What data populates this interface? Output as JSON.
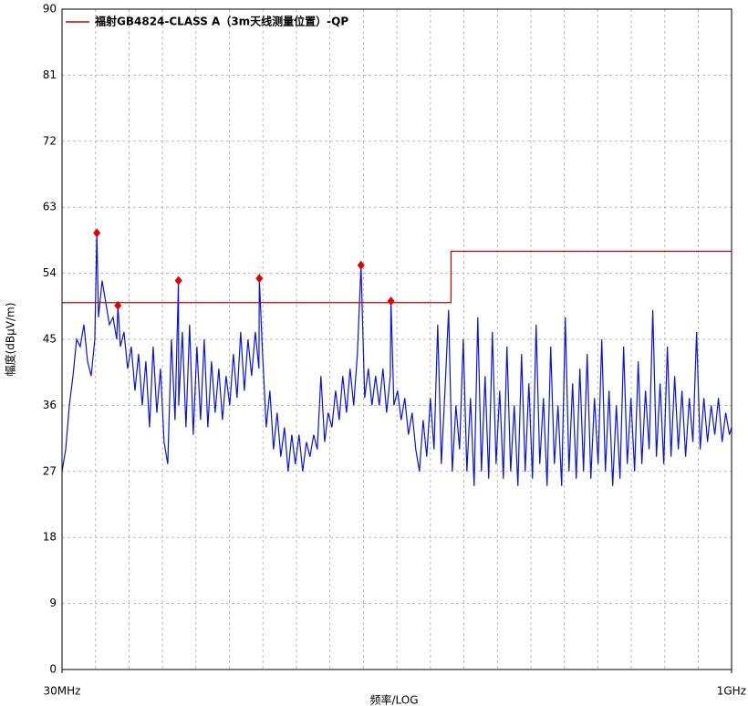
{
  "chart_data": {
    "type": "line",
    "xscale": "log",
    "grid": true,
    "xlabel": "频率/LOG",
    "ylabel": "幅度(dBμV/m)",
    "xlim": [
      30,
      1000
    ],
    "ylim": [
      0,
      90
    ],
    "xticks": [
      {
        "value": 30,
        "label": "30MHz"
      },
      {
        "value": 1000,
        "label": "1GHz"
      }
    ],
    "xgrid": [
      35.75,
      42.6,
      50.77,
      60.5,
      72.1,
      85.92,
      102.4,
      122.0,
      145.4,
      173.3,
      206.5,
      246.1,
      293.3,
      349.5,
      416.5,
      496.3,
      591.5,
      704.9,
      840.0
    ],
    "yticks": [
      0,
      9,
      18,
      27,
      36,
      45,
      54,
      63,
      72,
      81,
      90
    ],
    "legend": "top-left",
    "series": [
      {
        "style": "line",
        "color": "#0a14d6",
        "x": [
          30.0,
          30.58,
          31.17,
          31.77,
          32.38,
          33.0,
          33.64,
          34.29,
          34.95,
          35.62,
          36.0,
          36.31,
          37.01,
          37.72,
          38.45,
          39.19,
          39.95,
          40.2,
          40.72,
          41.5,
          42.3,
          43.12,
          43.95,
          44.8,
          45.66,
          46.54,
          47.44,
          48.35,
          49.29,
          50.24,
          51.2,
          52.19,
          53.2,
          54.22,
          55.2,
          55.27,
          56.33,
          57.42,
          58.52,
          59.65,
          60.8,
          61.98,
          63.17,
          64.39,
          65.63,
          66.9,
          68.19,
          69.5,
          70.84,
          72.21,
          73.6,
          75.02,
          76.47,
          77.94,
          79.45,
          80.98,
          82.54,
          84.13,
          84.3,
          85.76,
          87.41,
          89.1,
          90.81,
          92.56,
          94.35,
          96.17,
          98.03,
          99.92,
          101.8,
          103.8,
          105.8,
          107.9,
          109.9,
          112.1,
          114.2,
          116.4,
          118.7,
          120.9,
          123.3,
          125.7,
          128.1,
          130.5,
          133.1,
          135.6,
          138.2,
          140.9,
          143.6,
          146.4,
          149.2,
          152.1,
          155.0,
          158.0,
          161.1,
          164.2,
          167.4,
          168.0,
          170.6,
          173.9,
          177.2,
          180.6,
          184.1,
          187.7,
          191.3,
          195.0,
          198.8,
          202.6,
          206.5,
          210.5,
          214.6,
          218.7,
          222.9,
          227.2,
          231.6,
          236.1,
          240.6,
          245.3,
          250.0,
          254.8,
          259.7,
          264.7,
          269.8,
          275.0,
          280.3,
          285.7,
          291.3,
          296.9,
          302.6,
          308.4,
          314.4,
          320.4,
          326.6,
          332.9,
          339.3,
          345.9,
          352.5,
          359.3,
          366.2,
          373.3,
          380.5,
          387.8,
          395.3,
          402.9,
          410.7,
          418.6,
          426.7,
          434.9,
          443.3,
          451.8,
          460.5,
          469.4,
          478.5,
          487.7,
          497.1,
          506.7,
          516.4,
          526.4,
          536.5,
          546.9,
          557.4,
          568.2,
          579.1,
          590.3,
          601.7,
          613.3,
          625.1,
          637.1,
          649.4,
          661.9,
          674.7,
          687.7,
          701.0,
          714.5,
          728.3,
          742.3,
          756.6,
          771.2,
          786.1,
          801.3,
          816.7,
          832.5,
          848.5,
          864.9,
          881.6,
          898.6,
          915.9,
          933.6,
          951.6,
          969.9,
          988.6,
          1000
        ],
        "values": [
          27,
          30,
          36,
          40,
          45,
          44,
          47,
          42,
          40,
          45,
          59.5,
          48,
          53,
          50,
          47,
          48,
          45,
          49.6,
          44,
          46,
          41,
          44,
          38,
          43,
          36,
          42,
          33,
          44,
          35,
          41,
          31,
          28,
          45,
          34,
          53,
          36,
          46,
          33,
          47,
          32,
          44,
          34,
          45,
          33,
          42,
          35,
          41,
          34,
          40,
          36,
          43,
          37,
          46,
          38,
          45,
          40,
          46,
          41,
          53.3,
          43,
          33,
          38,
          30,
          35,
          29,
          33,
          27,
          32,
          28,
          32,
          27,
          31,
          29,
          32,
          30,
          40,
          31,
          35,
          33,
          38,
          34,
          40,
          35,
          41,
          36,
          43,
          55.1,
          37,
          41,
          36,
          40,
          36,
          41,
          35,
          40,
          50.2,
          36,
          38,
          34,
          37,
          32,
          35,
          30,
          27,
          34,
          29,
          37,
          30,
          47,
          28,
          38,
          49,
          27,
          36,
          30,
          45,
          27,
          37,
          25,
          48,
          27,
          40,
          26,
          46,
          28,
          38,
          26,
          44,
          27,
          36,
          25,
          43,
          27,
          39,
          26,
          47,
          28,
          37,
          25,
          44,
          28,
          36,
          25,
          48,
          27,
          39,
          26,
          41,
          27,
          43,
          26,
          37,
          28,
          45,
          27,
          38,
          25,
          36,
          26,
          44,
          28,
          37,
          27,
          42,
          28,
          38,
          30,
          49,
          29,
          39,
          28,
          44,
          29,
          40,
          30,
          38,
          29,
          37,
          31,
          46,
          30,
          37,
          31,
          36,
          32,
          37,
          31,
          35,
          32,
          33
        ]
      },
      {
        "style": "line",
        "name": "福射GB4824-CLASS A（3m天线测量位置）-QP",
        "color": "#c80000",
        "x": [
          30,
          230,
          230,
          1000
        ],
        "values": [
          50,
          50,
          57,
          57
        ]
      },
      {
        "style": "markers",
        "color": "#e00000",
        "x": [
          36.0,
          40.2,
          55.2,
          84.3,
          143.6,
          168.0
        ],
        "values": [
          59.5,
          49.6,
          53,
          53.3,
          55.1,
          50.2
        ]
      }
    ]
  }
}
